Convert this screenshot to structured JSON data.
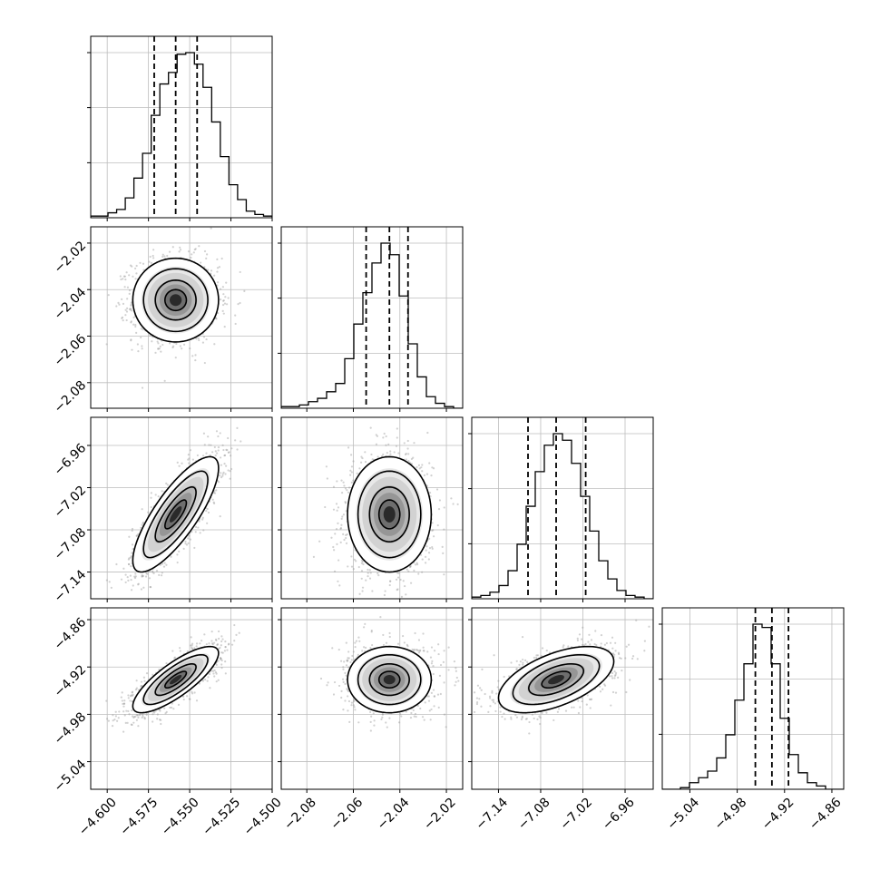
{
  "chart_data": {
    "type": "corner",
    "title": "",
    "parameter_labels": [
      "",
      "",
      "",
      ""
    ],
    "params": [
      {
        "range": [
          -4.61,
          -4.5
        ],
        "ticks": [
          -4.6,
          -4.575,
          -4.55,
          -4.525,
          -4.5
        ],
        "tick_labels": [
          "−4.600",
          "−4.575",
          "−4.550",
          "−4.525",
          "−4.500"
        ],
        "median": -4.5585,
        "quantiles": [
          -4.5715,
          -4.5585,
          -4.5455
        ]
      },
      {
        "range": [
          -2.091,
          -2.013
        ],
        "ticks": [
          -2.08,
          -2.06,
          -2.04,
          -2.02
        ],
        "tick_labels": [
          "−2.08",
          "−2.06",
          "−2.04",
          "−2.02"
        ],
        "median": -2.0445,
        "quantiles": [
          -2.0545,
          -2.0445,
          -2.0365
        ]
      },
      {
        "range": [
          -7.178,
          -6.92
        ],
        "ticks": [
          -7.14,
          -7.08,
          -7.02,
          -6.96
        ],
        "tick_labels": [
          "−7.14",
          "−7.08",
          "−7.02",
          "−6.96"
        ],
        "median": -7.058,
        "quantiles": [
          -7.098,
          -7.058,
          -7.016
        ]
      },
      {
        "range": [
          -5.075,
          -4.845
        ],
        "ticks": [
          -5.04,
          -4.98,
          -4.92,
          -4.86
        ],
        "tick_labels": [
          "−5.04",
          "−4.98",
          "−4.92",
          "−4.86"
        ],
        "median": -4.936,
        "quantiles": [
          -4.957,
          -4.936,
          -4.915
        ]
      }
    ],
    "correlations": {
      "1-0": 0.0,
      "2-0": 0.8,
      "2-1": 0.0,
      "3-0": 0.8,
      "3-1": 0.0,
      "3-2": 0.55
    },
    "histogram_relative_counts": [
      [
        0.01,
        0.01,
        0.03,
        0.05,
        0.12,
        0.24,
        0.39,
        0.62,
        0.81,
        0.88,
        0.99,
        1.0,
        0.93,
        0.79,
        0.58,
        0.37,
        0.2,
        0.11,
        0.04,
        0.02,
        0.01
      ],
      [
        0.01,
        0.01,
        0.02,
        0.04,
        0.06,
        0.1,
        0.15,
        0.3,
        0.51,
        0.7,
        0.88,
        1.0,
        0.93,
        0.68,
        0.39,
        0.19,
        0.07,
        0.03,
        0.01,
        0.0
      ],
      [
        0.01,
        0.02,
        0.04,
        0.08,
        0.17,
        0.33,
        0.56,
        0.77,
        0.93,
        1.0,
        0.96,
        0.82,
        0.62,
        0.41,
        0.23,
        0.12,
        0.05,
        0.02,
        0.01,
        0.0
      ],
      [
        0.0,
        0.0,
        0.01,
        0.04,
        0.07,
        0.11,
        0.19,
        0.33,
        0.54,
        0.76,
        1.0,
        0.98,
        0.76,
        0.43,
        0.21,
        0.1,
        0.04,
        0.02,
        0.0,
        0.0
      ]
    ],
    "grid": true,
    "legend": "none"
  }
}
